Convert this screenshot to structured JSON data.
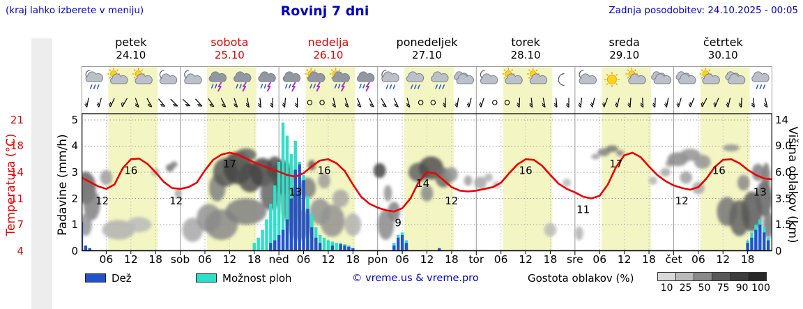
{
  "header": {
    "hint": "(kraj lahko izberete v meniju)",
    "title": "Rovinj 7 dni",
    "last_update": "Zadnja posodobitev: 24.10.2025 - 00:05"
  },
  "axes": {
    "temp_label": "Temperatura (°C)",
    "precip_label": "Padavine (mm/h)",
    "cloud_label": "Višina oblakov (km)",
    "temp_ticks": [
      "21",
      "18",
      "14",
      "11",
      "7",
      "4"
    ],
    "precip_ticks": [
      "5",
      "4",
      "3",
      "2",
      "1",
      "0"
    ],
    "cloud_ticks": [
      "14",
      "9.0",
      "6.0",
      "3.5",
      "1.5",
      "0"
    ]
  },
  "legend": {
    "rain_label": "Dež",
    "showers_label": "Možnost ploh",
    "copyright": "© vreme.us & vreme.pro",
    "cloud_density_label": "Gostota oblakov (%)",
    "cloud_scale": [
      10,
      25,
      50,
      75,
      90,
      100
    ]
  },
  "chart_data": {
    "type": "meteogram",
    "days": [
      {
        "name": "petek",
        "date": "24.10",
        "weekend": false
      },
      {
        "name": "sobota",
        "date": "25.10",
        "weekend": true
      },
      {
        "name": "nedelja",
        "date": "26.10",
        "weekend": true
      },
      {
        "name": "ponedeljek",
        "date": "27.10",
        "weekend": false
      },
      {
        "name": "torek",
        "date": "28.10",
        "weekend": false
      },
      {
        "name": "sreda",
        "date": "29.10",
        "weekend": false
      },
      {
        "name": "četrtek",
        "date": "30.10",
        "weekend": false
      }
    ],
    "x_axis": {
      "hour_labels": [
        "06",
        "12",
        "18"
      ],
      "day_abbrevs": [
        "sob",
        "ned",
        "pon",
        "tor",
        "sre",
        "čet"
      ]
    },
    "scales": {
      "temp": [
        21,
        18,
        14,
        11,
        7,
        4
      ],
      "cloud": [
        14,
        9,
        6,
        3.5,
        1.5,
        0
      ],
      "precip_max": 5
    },
    "daylight": {
      "start": 6.5,
      "end": 18.5
    },
    "colors": {
      "band": "#f3f6c3",
      "rain": "#2353cc",
      "shower": "#2ee0c9",
      "temp": "#ee0000",
      "weekend": "#e60000",
      "header_blue": "#0000cc"
    },
    "temp_series": {
      "unit": "°C",
      "points": [
        [
          0,
          13.4
        ],
        [
          2,
          12.9
        ],
        [
          4,
          12.4
        ],
        [
          6,
          12.1
        ],
        [
          8,
          12.6
        ],
        [
          10,
          14.6
        ],
        [
          12,
          16.0
        ],
        [
          14,
          16.1
        ],
        [
          16,
          15.3
        ],
        [
          18,
          14.0
        ],
        [
          20,
          12.9
        ],
        [
          22,
          12.2
        ],
        [
          24,
          12.1
        ],
        [
          26,
          12.3
        ],
        [
          28,
          12.8
        ],
        [
          30,
          14.3
        ],
        [
          32,
          15.9
        ],
        [
          34,
          16.7
        ],
        [
          36,
          17.0
        ],
        [
          38,
          16.7
        ],
        [
          40,
          16.1
        ],
        [
          42,
          15.5
        ],
        [
          44,
          15.0
        ],
        [
          46,
          14.5
        ],
        [
          48,
          14.1
        ],
        [
          50,
          13.7
        ],
        [
          52,
          13.5
        ],
        [
          54,
          13.9
        ],
        [
          56,
          14.9
        ],
        [
          58,
          15.8
        ],
        [
          60,
          16.0
        ],
        [
          62,
          15.4
        ],
        [
          64,
          14.2
        ],
        [
          66,
          12.6
        ],
        [
          68,
          11.2
        ],
        [
          70,
          10.2
        ],
        [
          72,
          9.6
        ],
        [
          74,
          9.2
        ],
        [
          76,
          9.0
        ],
        [
          78,
          9.5
        ],
        [
          80,
          11.0
        ],
        [
          82,
          12.9
        ],
        [
          84,
          14.0
        ],
        [
          86,
          13.9
        ],
        [
          88,
          13.1
        ],
        [
          90,
          12.3
        ],
        [
          92,
          11.9
        ],
        [
          94,
          11.8
        ],
        [
          96,
          11.9
        ],
        [
          98,
          12.1
        ],
        [
          100,
          12.3
        ],
        [
          102,
          12.8
        ],
        [
          104,
          13.9
        ],
        [
          106,
          15.2
        ],
        [
          108,
          16.0
        ],
        [
          110,
          15.9
        ],
        [
          112,
          15.0
        ],
        [
          114,
          13.7
        ],
        [
          116,
          12.7
        ],
        [
          118,
          12.1
        ],
        [
          120,
          11.7
        ],
        [
          122,
          11.2
        ],
        [
          124,
          11.0
        ],
        [
          126,
          11.3
        ],
        [
          128,
          12.6
        ],
        [
          130,
          14.8
        ],
        [
          132,
          16.6
        ],
        [
          134,
          17.0
        ],
        [
          136,
          16.3
        ],
        [
          138,
          14.9
        ],
        [
          140,
          13.7
        ],
        [
          142,
          13.0
        ],
        [
          144,
          12.5
        ],
        [
          146,
          12.2
        ],
        [
          148,
          12.0
        ],
        [
          150,
          12.3
        ],
        [
          152,
          13.3
        ],
        [
          154,
          14.8
        ],
        [
          156,
          15.9
        ],
        [
          158,
          16.0
        ],
        [
          160,
          15.4
        ],
        [
          162,
          14.4
        ],
        [
          164,
          13.7
        ],
        [
          166,
          13.3
        ],
        [
          168,
          13.2
        ]
      ]
    },
    "temp_point_labels": [
      [
        5,
        12
      ],
      [
        12,
        16
      ],
      [
        23,
        12
      ],
      [
        36,
        17
      ],
      [
        52,
        13
      ],
      [
        59,
        16
      ],
      [
        77,
        9
      ],
      [
        83,
        14
      ],
      [
        90,
        12
      ],
      [
        108,
        16
      ],
      [
        122,
        11
      ],
      [
        130,
        17
      ],
      [
        146,
        12
      ],
      [
        155,
        16
      ],
      [
        165,
        13
      ]
    ],
    "rain_mm_h": [
      [
        0,
        1.1
      ],
      [
        1,
        0.2
      ],
      [
        2,
        0.1
      ],
      [
        46,
        0.3
      ],
      [
        47,
        0.4
      ],
      [
        48,
        0.6
      ],
      [
        49,
        0.8
      ],
      [
        50,
        1.2
      ],
      [
        51,
        2.0
      ],
      [
        52,
        3.1
      ],
      [
        53,
        3.3
      ],
      [
        54,
        2.7
      ],
      [
        55,
        1.6
      ],
      [
        56,
        0.9
      ],
      [
        57,
        0.5
      ],
      [
        58,
        0.3
      ],
      [
        61,
        0.2
      ],
      [
        63,
        0.25
      ],
      [
        64,
        0.2
      ],
      [
        65,
        0.15
      ],
      [
        66,
        0.1
      ],
      [
        76,
        0.2
      ],
      [
        77,
        0.5
      ],
      [
        78,
        0.6
      ],
      [
        79,
        0.3
      ],
      [
        87,
        0.1
      ],
      [
        162,
        0.3
      ],
      [
        163,
        0.5
      ],
      [
        164,
        0.8
      ],
      [
        165,
        1.0
      ],
      [
        166,
        0.7
      ],
      [
        167,
        0.4
      ]
    ],
    "shower_mm_h": [
      [
        42,
        0.3
      ],
      [
        43,
        0.5
      ],
      [
        44,
        0.8
      ],
      [
        45,
        1.2
      ],
      [
        46,
        1.8
      ],
      [
        47,
        2.5
      ],
      [
        48,
        3.4
      ],
      [
        49,
        4.9
      ],
      [
        50,
        4.4
      ],
      [
        51,
        3.7
      ],
      [
        52,
        4.2
      ],
      [
        53,
        3.4
      ],
      [
        54,
        2.9
      ],
      [
        55,
        2.1
      ],
      [
        56,
        1.4
      ],
      [
        57,
        0.9
      ],
      [
        58,
        0.6
      ],
      [
        59,
        0.5
      ],
      [
        60,
        0.4
      ],
      [
        61,
        0.35
      ],
      [
        62,
        0.3
      ],
      [
        63,
        0.3
      ],
      [
        64,
        0.25
      ],
      [
        65,
        0.2
      ],
      [
        76,
        0.3
      ],
      [
        77,
        0.6
      ],
      [
        78,
        0.7
      ],
      [
        79,
        0.4
      ],
      [
        162,
        0.4
      ],
      [
        163,
        0.7
      ],
      [
        164,
        1.0
      ],
      [
        165,
        1.2
      ],
      [
        166,
        0.9
      ],
      [
        167,
        0.5
      ]
    ],
    "clouds": [
      [
        1,
        4.5,
        5,
        3,
        70
      ],
      [
        2.5,
        3,
        4,
        2.5,
        55
      ],
      [
        1,
        1.5,
        3,
        1.5,
        45
      ],
      [
        6,
        5.5,
        3,
        1.5,
        40
      ],
      [
        9,
        1.2,
        8,
        1.2,
        30
      ],
      [
        14,
        1.5,
        6,
        1,
        25
      ],
      [
        18,
        6,
        2,
        0.8,
        30
      ],
      [
        21.5,
        6.5,
        2,
        0.9,
        60
      ],
      [
        22.5,
        6.9,
        1.5,
        0.7,
        55
      ],
      [
        23.5,
        4,
        1.5,
        1,
        35
      ],
      [
        27,
        1.2,
        5,
        1.5,
        35
      ],
      [
        31,
        2,
        6,
        2,
        45
      ],
      [
        34,
        1.5,
        8,
        2,
        50
      ],
      [
        33,
        4.5,
        4,
        2.5,
        55
      ],
      [
        35,
        6,
        6,
        3,
        75
      ],
      [
        38,
        6.5,
        7,
        3.5,
        85
      ],
      [
        40,
        8,
        5,
        1.5,
        70
      ],
      [
        41,
        5.5,
        6,
        3,
        80
      ],
      [
        44,
        6,
        6,
        3,
        85
      ],
      [
        46,
        4,
        5,
        3,
        70
      ],
      [
        40,
        2.5,
        10,
        2,
        55
      ],
      [
        47,
        6.5,
        4,
        2.5,
        80
      ],
      [
        49,
        5.5,
        5,
        3.5,
        80
      ],
      [
        51,
        3,
        5,
        3,
        65
      ],
      [
        53,
        1.5,
        6,
        2,
        50
      ],
      [
        55,
        4.5,
        4,
        2,
        55
      ],
      [
        56,
        6.8,
        2,
        1.2,
        70
      ],
      [
        58,
        2.5,
        5,
        2,
        45
      ],
      [
        59,
        5.2,
        3,
        1.5,
        40
      ],
      [
        61,
        1.8,
        6,
        2.2,
        45
      ],
      [
        63,
        3.5,
        4,
        1.5,
        35
      ],
      [
        66,
        1.5,
        4,
        1.5,
        30
      ],
      [
        72.5,
        6.2,
        3,
        1.6,
        85
      ],
      [
        74,
        1.5,
        4,
        2,
        50
      ],
      [
        74.5,
        4,
        2,
        1.5,
        45
      ],
      [
        76,
        2.5,
        3,
        1.5,
        55
      ],
      [
        82,
        6,
        5,
        2,
        70
      ],
      [
        84,
        4,
        3,
        1.5,
        50
      ],
      [
        85,
        6.5,
        6,
        2.5,
        80
      ],
      [
        88,
        5.5,
        4,
        2,
        65
      ],
      [
        90,
        5.8,
        3,
        1.5,
        45
      ],
      [
        94,
        5.2,
        2,
        1,
        40
      ],
      [
        97,
        5,
        3,
        1.2,
        35
      ],
      [
        99,
        5.5,
        2,
        0.8,
        30
      ],
      [
        101,
        4.8,
        2,
        0.7,
        25
      ],
      [
        114,
        1.2,
        3,
        0.8,
        25
      ],
      [
        118,
        5,
        2,
        0.8,
        25
      ],
      [
        121,
        1,
        2,
        0.8,
        30
      ],
      [
        125,
        7.8,
        2,
        0.6,
        40
      ],
      [
        127,
        8.3,
        3,
        0.9,
        55
      ],
      [
        129,
        8.7,
        3,
        0.8,
        60
      ],
      [
        131,
        8.2,
        2,
        0.7,
        50
      ],
      [
        139,
        5.2,
        2,
        0.8,
        30
      ],
      [
        142,
        6,
        2.5,
        0.9,
        35
      ],
      [
        143,
        7,
        2,
        0.8,
        40
      ],
      [
        145,
        7.5,
        5,
        1.6,
        50
      ],
      [
        147,
        5.5,
        3,
        1.2,
        40
      ],
      [
        148,
        8,
        5,
        1.4,
        45
      ],
      [
        150,
        4.5,
        3,
        1.2,
        35
      ],
      [
        151,
        7.2,
        4,
        1.6,
        45
      ],
      [
        157,
        2.5,
        5,
        2.2,
        60
      ],
      [
        158,
        8.8,
        4,
        0.9,
        45
      ],
      [
        160,
        2,
        5,
        2.5,
        70
      ],
      [
        161,
        5,
        3,
        1.5,
        50
      ],
      [
        163,
        2.5,
        5,
        3,
        75
      ],
      [
        164.5,
        6,
        3,
        1.8,
        55
      ],
      [
        166,
        3.5,
        4,
        3,
        70
      ],
      [
        166.5,
        5.5,
        2,
        3,
        60
      ],
      [
        167,
        1.5,
        2.5,
        1.8,
        60
      ]
    ],
    "icon_hours": [
      3,
      9,
      15,
      21
    ],
    "weather_icons": [
      [
        "moon-cloud-rain",
        "sun-cloud",
        "sun-cloud",
        "moon-cloud"
      ],
      [
        "moon-cloud",
        "cloud-rain-lightning",
        "cloud-rain-lightning",
        "cloud-rain-lightning"
      ],
      [
        "cloud-rain-lightning",
        "sun-cloud-rain-lightning",
        "sun-cloud-rain-lightning",
        "cloud-rain-lightning"
      ],
      [
        "moon-cloud-rain",
        "cloud-rain",
        "cloud-rain",
        "cloud"
      ],
      [
        "moon-cloud",
        "sun-cloud",
        "sun-cloud",
        "moon"
      ],
      [
        "moon-cloud",
        "sun",
        "sun-cloud",
        "cloud"
      ],
      [
        "cloud",
        "sun-cloud",
        "cloud",
        "cloud-rain"
      ]
    ],
    "wind": [
      100,
      105,
      115,
      120,
      70,
      60,
      50,
      45,
      42,
      48,
      55,
      62,
      70,
      78,
      84,
      90,
      94,
      88,
      null,
      null,
      76,
      70,
      68,
      62,
      58,
      64,
      74,
      null,
      null,
      90,
      98,
      104,
      108,
      null,
      null,
      92,
      84,
      78,
      84,
      90,
      96,
      102,
      110,
      104,
      94,
      86,
      92,
      100,
      106,
      112,
      118,
      112,
      102,
      92,
      84,
      76
    ]
  }
}
